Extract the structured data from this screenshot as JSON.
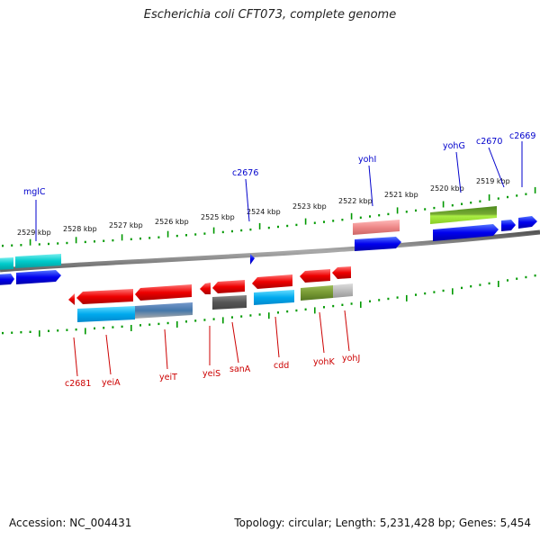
{
  "title": "Escherichia coli CFT073, complete genome",
  "footer": {
    "accession": "Accession: NC_004431",
    "stats": "Topology: circular; Length: 5,231,428 bp; Genes: 5,454"
  },
  "colors": {
    "forward_label": "#0000cc",
    "reverse_label": "#cc0000",
    "tick": "#009900",
    "backbone": "#777777"
  },
  "scale_labels": [
    "2529 kbp",
    "2528 kbp",
    "2527 kbp",
    "2526 kbp",
    "2525 kbp",
    "2524 kbp",
    "2523 kbp",
    "2522 kbp",
    "2521 kbp",
    "2520 kbp",
    "2519 kbp"
  ],
  "forward_genes": [
    "mglC",
    "c2676",
    "yohI",
    "yohG",
    "c2670",
    "c2669"
  ],
  "reverse_genes": [
    "c2681",
    "yeiA",
    "yeiT",
    "yeiS",
    "sanA",
    "cdd",
    "yohK",
    "yohJ"
  ]
}
